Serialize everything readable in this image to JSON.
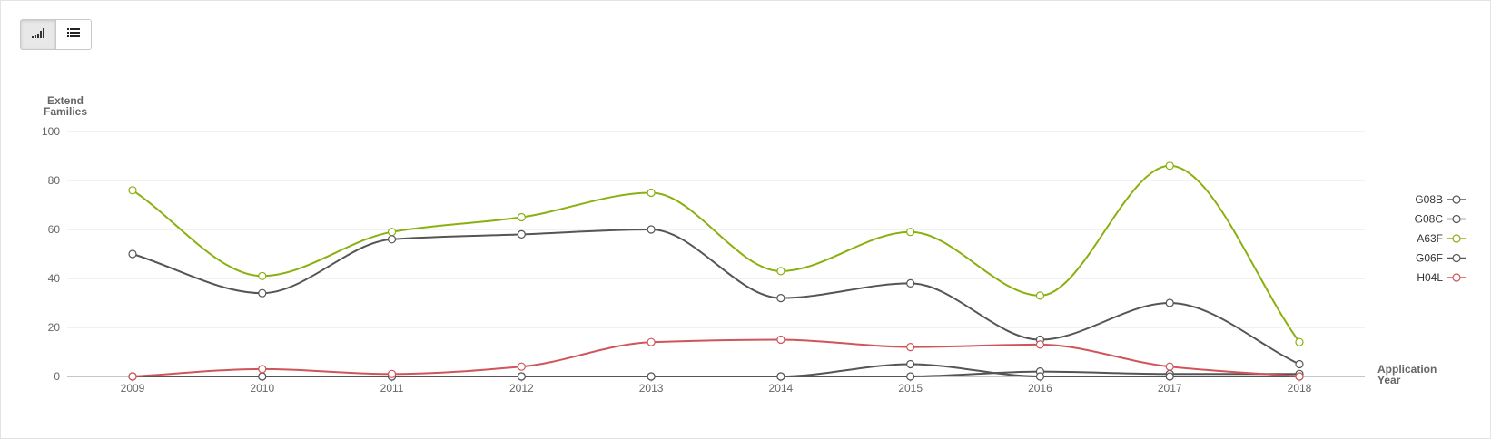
{
  "toolbar": {
    "buttons": [
      {
        "icon": "bar-chart-icon",
        "active": true
      },
      {
        "icon": "list-icon",
        "active": false
      }
    ]
  },
  "chart_data": {
    "type": "line",
    "title": "",
    "ylabel_lines": [
      "Extend",
      "Families"
    ],
    "xlabel_lines": [
      "Application",
      "Year"
    ],
    "ylim": [
      0,
      100
    ],
    "yticks": [
      "0",
      "20",
      "40",
      "60",
      "80",
      "100"
    ],
    "categories": [
      "2009",
      "2010",
      "2011",
      "2012",
      "2013",
      "2014",
      "2015",
      "2016",
      "2017",
      "2018"
    ],
    "grid": true,
    "legend_position": "right",
    "series": [
      {
        "name": "G08B",
        "color": "#555555",
        "values": [
          0,
          0,
          0,
          0,
          0,
          0,
          0,
          2,
          1,
          1
        ]
      },
      {
        "name": "G08C",
        "color": "#555555",
        "values": [
          0,
          0,
          0,
          0,
          0,
          0,
          5,
          0,
          0,
          0
        ]
      },
      {
        "name": "A63F",
        "color": "#8ab010",
        "values": [
          76,
          41,
          59,
          65,
          75,
          43,
          59,
          33,
          86,
          14
        ]
      },
      {
        "name": "G06F",
        "color": "#555555",
        "values": [
          50,
          34,
          56,
          58,
          60,
          32,
          38,
          15,
          30,
          5
        ]
      },
      {
        "name": "H04L",
        "color": "#d0555a",
        "values": [
          0,
          3,
          1,
          4,
          14,
          15,
          12,
          13,
          4,
          0
        ]
      }
    ]
  }
}
